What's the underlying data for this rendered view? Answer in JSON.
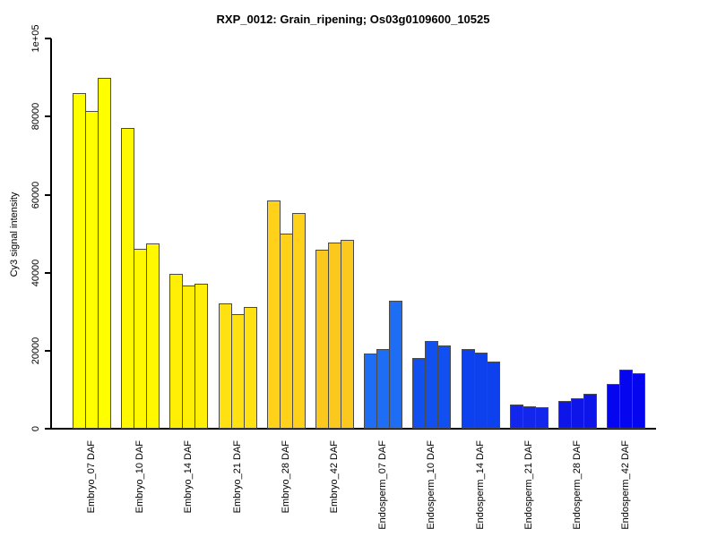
{
  "chart_data": {
    "type": "bar",
    "title": "RXP_0012: Grain_ripening; Os03g0109600_10525",
    "xlabel": "",
    "ylabel": "Cy3 signal intensity",
    "ylim": [
      0,
      100000
    ],
    "grid": false,
    "legend": "none",
    "ytick_values": [
      0,
      20000,
      40000,
      60000,
      80000,
      100000
    ],
    "ytick_labels": [
      "0",
      "20000",
      "40000",
      "60000",
      "80000",
      "1e+05"
    ],
    "categories": [
      "Embryo_07 DAF",
      "Embryo_10 DAF",
      "Embryo_14 DAF",
      "Embryo_21 DAF",
      "Embryo_28 DAF",
      "Embryo_42 DAF",
      "Endosperm_07 DAF",
      "Endosperm_10 DAF",
      "Endosperm_14 DAF",
      "Endosperm_21 DAF",
      "Endosperm_28 DAF",
      "Endosperm_42 DAF"
    ],
    "values": [
      [
        86000,
        81500,
        90000
      ],
      [
        77200,
        46200,
        47500
      ],
      [
        39800,
        36800,
        37100
      ],
      [
        32200,
        29400,
        31300
      ],
      [
        58600,
        50000,
        55200
      ],
      [
        45800,
        47700,
        48500
      ],
      [
        19200,
        20400,
        32800
      ],
      [
        18200,
        22600,
        21400
      ],
      [
        20400,
        19500,
        17200
      ],
      [
        6200,
        5700,
        5400
      ],
      [
        7200,
        7800,
        9000
      ],
      [
        11500,
        15200,
        14200
      ]
    ],
    "group_colors": [
      "#ffff00",
      "#fff800",
      "#ffee06",
      "#ffe011",
      "#ffd118",
      "#fbc81d",
      "#1e6ef5",
      "#1150f0",
      "#0d41ee",
      "#1226ec",
      "#0d15e8",
      "#0505f0"
    ],
    "bar_border_color": "#4a4a4a"
  }
}
